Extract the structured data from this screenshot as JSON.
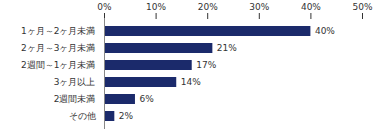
{
  "chart_data": {
    "type": "bar",
    "orientation": "horizontal",
    "categories": [
      "1ヶ月～2ヶ月未満",
      "2ヶ月～3ヶ月未満",
      "2週間～1ヶ月未満",
      "3ヶ月以上",
      "2週間未満",
      "その他"
    ],
    "values": [
      40,
      21,
      17,
      14,
      6,
      2
    ],
    "value_labels": [
      "40%",
      "21%",
      "17%",
      "14%",
      "6%",
      "2%"
    ],
    "color": "#1b2a6b",
    "xlim": [
      0,
      50
    ],
    "xticks": [
      {
        "value": 0,
        "label": "0%"
      },
      {
        "value": 10,
        "label": "10%"
      },
      {
        "value": 20,
        "label": "20%"
      },
      {
        "value": 30,
        "label": "30%"
      },
      {
        "value": 40,
        "label": "40%"
      },
      {
        "value": 50,
        "label": "50%"
      }
    ],
    "grid": false,
    "data_labels": true
  }
}
